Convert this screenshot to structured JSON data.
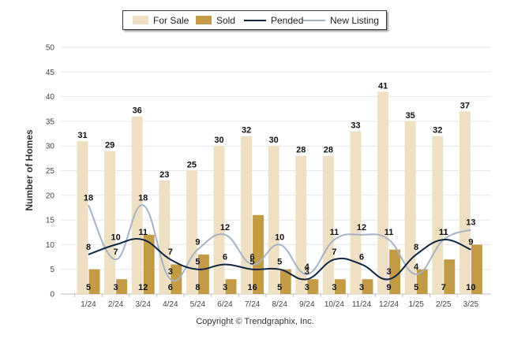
{
  "chart_data": {
    "type": "bar",
    "title": "",
    "xlabel": "",
    "ylabel": "Number of Homes",
    "ylim": [
      0,
      50
    ],
    "yticks": [
      0,
      5,
      10,
      15,
      20,
      25,
      30,
      35,
      40,
      45,
      50
    ],
    "grid": true,
    "legend_position": "top-center",
    "categories": [
      "1/24",
      "2/24",
      "3/24",
      "4/24",
      "5/24",
      "6/24",
      "7/24",
      "8/24",
      "9/24",
      "10/24",
      "11/24",
      "12/24",
      "1/25",
      "2/25",
      "3/25"
    ],
    "series": [
      {
        "name": "For Sale",
        "kind": "bar",
        "color": "#efe0c3",
        "values": [
          31,
          29,
          36,
          23,
          25,
          30,
          32,
          30,
          28,
          28,
          33,
          41,
          35,
          32,
          37
        ]
      },
      {
        "name": "Sold",
        "kind": "bar",
        "color": "#c49b45",
        "values": [
          5,
          3,
          12,
          6,
          8,
          3,
          16,
          5,
          3,
          3,
          3,
          9,
          5,
          7,
          10
        ]
      },
      {
        "name": "Pended",
        "kind": "line",
        "color": "#0f2743",
        "values": [
          8,
          10,
          11,
          7,
          5,
          6,
          5,
          5,
          3,
          7,
          6,
          3,
          8,
          11,
          9
        ]
      },
      {
        "name": "New Listing",
        "kind": "line",
        "color": "#a6b2c5",
        "values": [
          18,
          7,
          18,
          3,
          9,
          12,
          6,
          10,
          4,
          11,
          12,
          11,
          4,
          11,
          13
        ]
      }
    ]
  },
  "copyright": "Copyright © Trendgraphix, Inc."
}
